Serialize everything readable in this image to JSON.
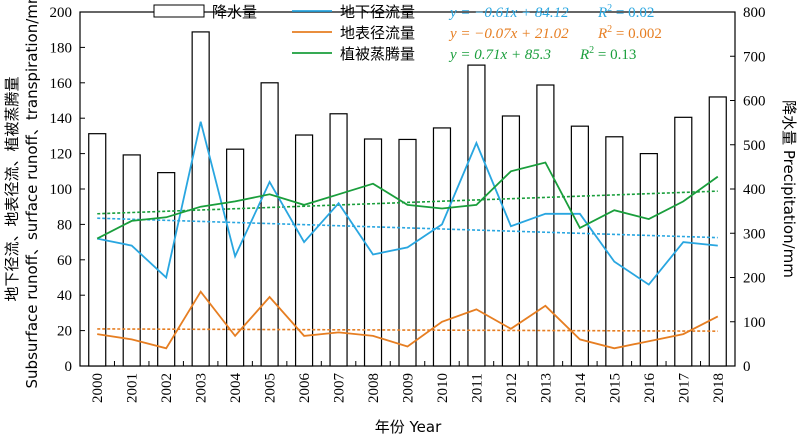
{
  "chart_data": {
    "type": "bar+line",
    "categories": [
      "2000",
      "2001",
      "2002",
      "2003",
      "2004",
      "2005",
      "2006",
      "2007",
      "2008",
      "2009",
      "2010",
      "2011",
      "2012",
      "2013",
      "2014",
      "2015",
      "2016",
      "2017",
      "2018"
    ],
    "xlabel": "年份 Year",
    "ylabel_left": "地下径流、地表径流、植被蒸腾量 Subsurface runoff、surface runoff、transpiration/mm",
    "ylabel_right": "降水量 Precipitation/mm",
    "ylim_left": [
      0,
      200
    ],
    "ylim_right": [
      0,
      800
    ],
    "yticks_left": [
      "0",
      "20",
      "40",
      "60",
      "80",
      "100",
      "120",
      "140",
      "160",
      "180",
      "200"
    ],
    "yticks_right": [
      "0",
      "100",
      "200",
      "300",
      "400",
      "500",
      "600",
      "700",
      "800"
    ],
    "grid": false,
    "legend_position": "top",
    "precipitation": {
      "name": "降水量",
      "axis": "right",
      "color": "#000000",
      "values": [
        525,
        477,
        437,
        755,
        490,
        640,
        522,
        570,
        513,
        512,
        538,
        680,
        565,
        635,
        542,
        518,
        480,
        562,
        608
      ]
    },
    "series": [
      {
        "name": "地下径流量",
        "color": "#29a6e0",
        "values": [
          72,
          68,
          50,
          138,
          62,
          104,
          70,
          92,
          63,
          67,
          80,
          126,
          79,
          86,
          86,
          59,
          46,
          70,
          68
        ],
        "equation": "y = −0.61x + 84.12",
        "r2_label": "R",
        "r2_value": " = 0.02",
        "trend_start": 83.51,
        "trend_end": 72.53
      },
      {
        "name": "地表径流量",
        "color": "#e67e22",
        "values": [
          18,
          15,
          10,
          42,
          17,
          39,
          17,
          19,
          17,
          11,
          25,
          32,
          21,
          34,
          15,
          10,
          14,
          18,
          28
        ],
        "equation": "y = −0.07x + 21.02",
        "r2_label": "R",
        "r2_value": " = 0.002",
        "trend_start": 20.95,
        "trend_end": 19.69
      },
      {
        "name": "植被蒸腾量",
        "color": "#1a9e3c",
        "values": [
          72,
          82,
          84,
          90,
          93,
          97,
          91,
          97,
          103,
          91,
          89,
          91,
          110,
          115,
          78,
          88,
          83,
          93,
          107
        ],
        "equation": "y = 0.71x + 85.3",
        "r2_label": "R",
        "r2_value": " = 0.13",
        "trend_start": 86.01,
        "trend_end": 98.79
      }
    ]
  }
}
